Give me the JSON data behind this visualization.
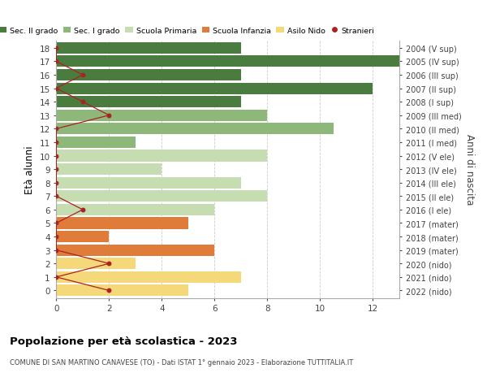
{
  "ages": [
    18,
    17,
    16,
    15,
    14,
    13,
    12,
    11,
    10,
    9,
    8,
    7,
    6,
    5,
    4,
    3,
    2,
    1,
    0
  ],
  "years": [
    "2004 (V sup)",
    "2005 (IV sup)",
    "2006 (III sup)",
    "2007 (II sup)",
    "2008 (I sup)",
    "2009 (III med)",
    "2010 (II med)",
    "2011 (I med)",
    "2012 (V ele)",
    "2013 (IV ele)",
    "2014 (III ele)",
    "2015 (II ele)",
    "2016 (I ele)",
    "2017 (mater)",
    "2018 (mater)",
    "2019 (mater)",
    "2020 (nido)",
    "2021 (nido)",
    "2022 (nido)"
  ],
  "bar_values": [
    7,
    13,
    7,
    12,
    7,
    8,
    10.5,
    3,
    8,
    4,
    7,
    8,
    6,
    5,
    2,
    6,
    3,
    7,
    5
  ],
  "bar_colors": [
    "#4a7c3f",
    "#4a7c3f",
    "#4a7c3f",
    "#4a7c3f",
    "#4a7c3f",
    "#8db87a",
    "#8db87a",
    "#8db87a",
    "#c5ddb0",
    "#c5ddb0",
    "#c5ddb0",
    "#c5ddb0",
    "#c5ddb0",
    "#e07c3a",
    "#e07c3a",
    "#e07c3a",
    "#f5d87a",
    "#f5d87a",
    "#f5d87a"
  ],
  "stranieri_values": [
    0,
    0,
    1,
    0,
    1,
    2,
    0,
    0,
    0,
    0,
    0,
    0,
    1,
    0,
    0,
    0,
    2,
    0,
    2
  ],
  "stranieri_color": "#aa2222",
  "legend_labels": [
    "Sec. II grado",
    "Sec. I grado",
    "Scuola Primaria",
    "Scuola Infanzia",
    "Asilo Nido",
    "Stranieri"
  ],
  "legend_colors": [
    "#4a7c3f",
    "#8db87a",
    "#c5ddb0",
    "#e07c3a",
    "#f5d87a",
    "#aa2222"
  ],
  "ylabel": "Età alunni",
  "ylabel_right": "Anni di nascita",
  "title": "Popolazione per età scolastica - 2023",
  "subtitle": "COMUNE DI SAN MARTINO CANAVESE (TO) - Dati ISTAT 1° gennaio 2023 - Elaborazione TUTTITALIA.IT",
  "xlim": [
    0,
    13
  ],
  "xticks": [
    0,
    2,
    4,
    6,
    8,
    10,
    12
  ],
  "background_color": "#ffffff",
  "grid_color": "#cccccc"
}
